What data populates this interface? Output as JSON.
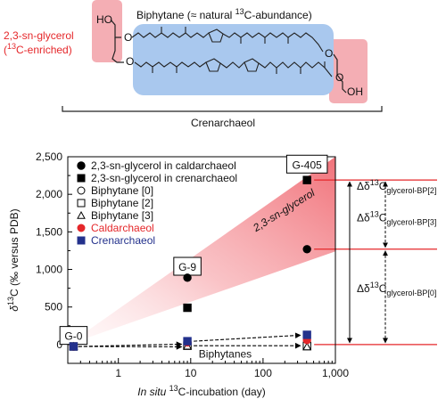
{
  "figure": {
    "structure": {
      "glycerol_label": "2,3-sn-glycerol",
      "glycerol_sub_prefix": "(",
      "glycerol_sub_sup": "13",
      "glycerol_sub_suffix": "C-enriched)",
      "biphytane_prefix": "Biphytane (≈ natural ",
      "biphytane_sup": "13",
      "biphytane_suffix": "C-abundance)",
      "ho_label": "HO",
      "oh_label": "OH",
      "o_label": "O",
      "bracket_label": "Crenarchaeol"
    },
    "colors": {
      "accent_red": "#e5272a",
      "navy": "#23318c",
      "glycerol_box": "#f4aeb4",
      "biphytane_box": "#a9c8ee",
      "wedge": "#f06b73"
    }
  },
  "chart_data": {
    "type": "scatter",
    "x_scale": "log",
    "xlim": [
      0.2,
      1000
    ],
    "ylim": [
      -250,
      2500
    ],
    "xticks": [
      1,
      10,
      100,
      1000
    ],
    "xtick_labels": [
      "1",
      "10",
      "100",
      "1,000"
    ],
    "yticks": [
      0,
      500,
      1000,
      1500,
      2000,
      2500
    ],
    "ytick_labels": [
      "0",
      "500",
      "1,000",
      "1,500",
      "2,000",
      "2,500"
    ],
    "ylabel": "δ13C (‰ versus PDB)",
    "ylabel_parts": [
      "δ",
      "13",
      "C (‰ versus PDB)"
    ],
    "xlabel_parts": [
      "In situ",
      " ",
      "13",
      "C-incubation (day)"
    ],
    "xlabel": "In situ 13C-incubation (day)",
    "legend": {
      "position": "top-left",
      "entries": [
        {
          "label": "2,3-sn-glycerol in caldarchaeol",
          "marker": "circle",
          "fill": "#000000",
          "stroke": "#000000",
          "text_color": "#111111"
        },
        {
          "label": "2,3-sn-glycerol in crenarchaeol",
          "marker": "square",
          "fill": "#000000",
          "stroke": "#000000",
          "text_color": "#111111"
        },
        {
          "label": "Biphytane [0]",
          "marker": "circle",
          "fill": "#ffffff",
          "stroke": "#000000",
          "text_color": "#111111"
        },
        {
          "label": "Biphytane [2]",
          "marker": "square",
          "fill": "#ffffff",
          "stroke": "#000000",
          "text_color": "#111111"
        },
        {
          "label": "Biphytane [3]",
          "marker": "triangle",
          "fill": "#ffffff",
          "stroke": "#000000",
          "text_color": "#111111"
        },
        {
          "label": "Caldarchaeol",
          "marker": "circle",
          "fill": "#e5272a",
          "stroke": "#e5272a",
          "text_color": "#e5272a"
        },
        {
          "label": "Crenarchaeol",
          "marker": "square",
          "fill": "#23318c",
          "stroke": "#23318c",
          "text_color": "#23318c"
        }
      ]
    },
    "series": [
      {
        "name": "2,3-sn-glycerol in caldarchaeol",
        "marker": "circle",
        "fill": "#000000",
        "stroke": "#000000",
        "points": [
          [
            9,
            890
          ],
          [
            405,
            1270
          ]
        ]
      },
      {
        "name": "2,3-sn-glycerol in crenarchaeol",
        "marker": "square",
        "fill": "#000000",
        "stroke": "#000000",
        "points": [
          [
            9,
            490
          ],
          [
            405,
            2190
          ]
        ]
      },
      {
        "name": "Biphytane [0]",
        "marker": "circle",
        "fill": "#ffffff",
        "stroke": "#000000",
        "points": [
          [
            0.24,
            -25
          ],
          [
            9,
            10
          ],
          [
            405,
            20
          ]
        ]
      },
      {
        "name": "Biphytane [2]",
        "marker": "square",
        "fill": "#ffffff",
        "stroke": "#000000",
        "points": [
          [
            0.24,
            -25
          ],
          [
            9,
            -15
          ],
          [
            405,
            -20
          ]
        ]
      },
      {
        "name": "Biphytane [3]",
        "marker": "triangle",
        "fill": "#ffffff",
        "stroke": "#000000",
        "points": [
          [
            0.24,
            -25
          ],
          [
            9,
            -20
          ],
          [
            405,
            -30
          ]
        ]
      },
      {
        "name": "Caldarchaeol",
        "marker": "circle",
        "fill": "#e5272a",
        "stroke": "#e5272a",
        "points": [
          [
            0.24,
            -25
          ],
          [
            9,
            30
          ],
          [
            405,
            60
          ]
        ]
      },
      {
        "name": "Crenarchaeol",
        "marker": "square",
        "fill": "#23318c",
        "stroke": "#23318c",
        "points": [
          [
            0.24,
            -25
          ],
          [
            9,
            45
          ],
          [
            405,
            130
          ]
        ]
      }
    ],
    "stations": [
      {
        "label": "G-0",
        "x": 0.24,
        "y": 110
      },
      {
        "label": "G-9",
        "x": 9,
        "y": 1030
      },
      {
        "label": "G-405",
        "x": 405,
        "y": 2390
      }
    ],
    "wedge": {
      "label": "2,3-sn-glycerol",
      "from": [
        0.2,
        0
      ],
      "to_upper": [
        1000,
        2950
      ],
      "to_lower": [
        1000,
        1240
      ]
    },
    "biphytanes_label": "Biphytanes",
    "trend_arrows": [
      {
        "from": [
          0.28,
          -25
        ],
        "to": [
          7.5,
          5
        ]
      },
      {
        "from": [
          0.28,
          -25
        ],
        "to": [
          7.5,
          -30
        ]
      },
      {
        "from": [
          11,
          45
        ],
        "to": [
          330,
          125
        ]
      },
      {
        "from": [
          11,
          -15
        ],
        "to": [
          330,
          -15
        ]
      }
    ],
    "reference_lines": [
      {
        "y": 2190,
        "color": "#e5272a"
      },
      {
        "y": 1270,
        "color": "#e5272a"
      },
      {
        "y": 0,
        "color": "#e5272a"
      }
    ],
    "delta_annotations": [
      {
        "text_prefix": "Δδ",
        "sup": "13",
        "text_mid": "C",
        "sub": "glycerol-BP[2]",
        "from_y": 2190,
        "to_y": 0
      },
      {
        "text_prefix": "Δδ",
        "sup": "13",
        "text_mid": "C",
        "sub": "glycerol-BP[3]",
        "from_y": 2190,
        "to_y": 1270
      },
      {
        "text_prefix": "Δδ",
        "sup": "13",
        "text_mid": "C",
        "sub": "glycerol-BP[0]",
        "from_y": 1270,
        "to_y": 0
      }
    ]
  }
}
